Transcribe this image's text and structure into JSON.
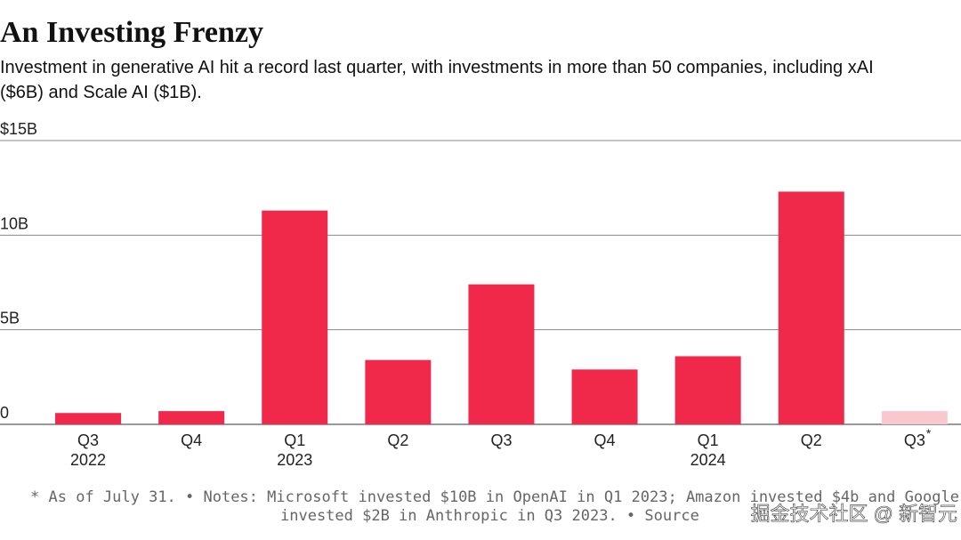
{
  "chart_data": {
    "type": "bar",
    "title": "An Investing Frenzy",
    "subtitle_lines": [
      "Investment in generative AI hit a record last quarter, with investments in more than 50 companies, including xAI",
      "($6B) and Scale AI ($1B)."
    ],
    "categories": [
      "Q3",
      "Q4",
      "Q1",
      "Q2",
      "Q3",
      "Q4",
      "Q1",
      "Q2",
      "Q3"
    ],
    "category_notes": [
      null,
      null,
      null,
      null,
      null,
      null,
      null,
      null,
      "*"
    ],
    "years": [
      "2022",
      null,
      "2023",
      null,
      null,
      null,
      "2024",
      null,
      null
    ],
    "values": [
      0.6,
      0.7,
      11.3,
      3.4,
      7.4,
      2.9,
      3.6,
      12.3,
      0.7
    ],
    "colors": [
      "#f0284a",
      "#f0284a",
      "#f0284a",
      "#f0284a",
      "#f0284a",
      "#f0284a",
      "#f0284a",
      "#f0284a",
      "#f9c8ce"
    ],
    "ylim": [
      0,
      15
    ],
    "yticks": [
      0,
      {
        "value": 5,
        "label": "5B"
      },
      {
        "value": 10,
        "label": "10B"
      },
      {
        "value": 15,
        "label": "$15B"
      }
    ],
    "grid": true,
    "footnote_lines": [
      "* As of July 31. • Notes: Microsoft invested $10B in OpenAI in Q1 2023; Amazon invested $4b and Google",
      "invested $2B in Anthropic in Q3 2023. • Source"
    ],
    "watermark": "掘金技术社区 @ 新智元"
  }
}
